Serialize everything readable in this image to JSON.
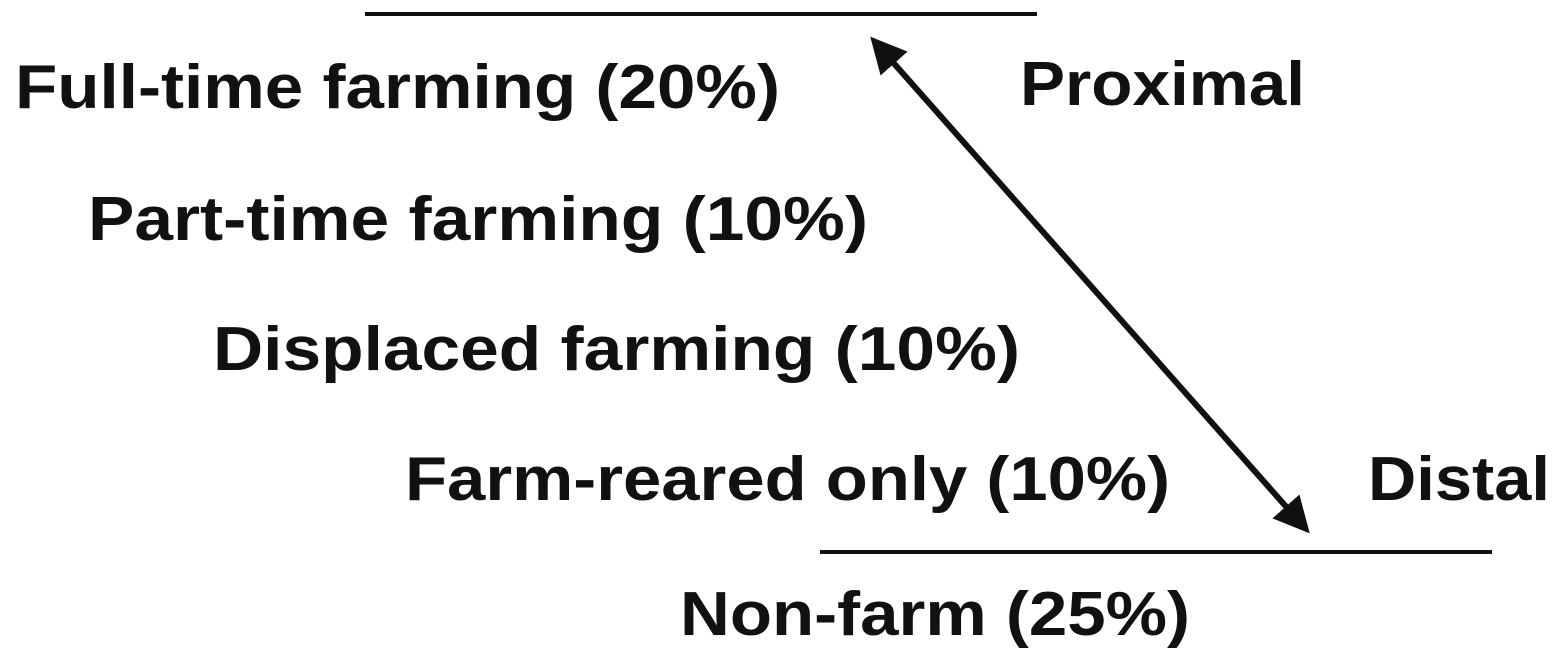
{
  "nodes": [
    {
      "label": "Full-time farming (20%)"
    },
    {
      "label": "Part-time farming (10%)"
    },
    {
      "label": "Displaced farming (10%)"
    },
    {
      "label": "Farm-reared only (10%)"
    },
    {
      "label": "Non-farm (25%)"
    }
  ],
  "axis": {
    "start": "Proximal",
    "end": "Distal"
  }
}
